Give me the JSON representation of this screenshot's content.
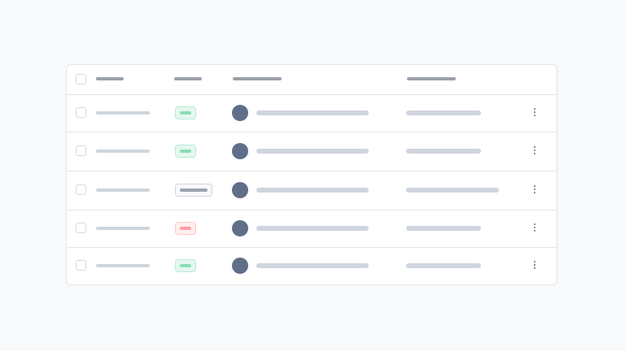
{
  "table": {
    "columns": 4,
    "rows": [
      {
        "status": "success",
        "wide_last": false
      },
      {
        "status": "success",
        "wide_last": false
      },
      {
        "status": "neutral",
        "wide_last": true
      },
      {
        "status": "danger",
        "wide_last": false
      },
      {
        "status": "success",
        "wide_last": false
      }
    ]
  },
  "colors": {
    "success_bg": "#e6f7ef",
    "success_border": "#b7ecd3",
    "success_fill": "#86e0b4",
    "neutral_bg": "#f8f9fb",
    "neutral_border": "#cfd5de",
    "neutral_fill": "#9ba3b0",
    "danger_bg": "#ffeeee",
    "danger_border": "#ffc9c9",
    "danger_fill": "#ff9ea3",
    "placeholder": "#cfd5de",
    "avatar": "#5f6f8a"
  }
}
